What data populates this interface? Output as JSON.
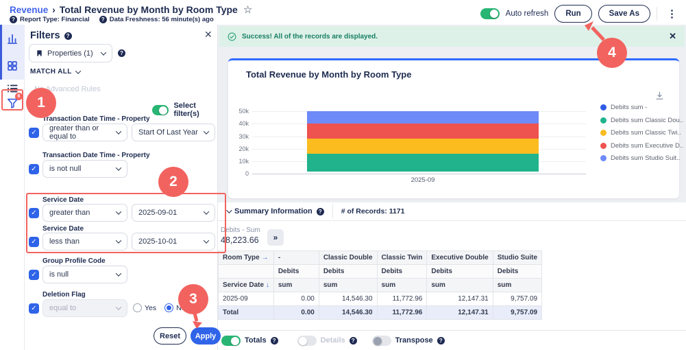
{
  "header": {
    "breadcrumb_parent": "Revenue",
    "title": "Total Revenue by Month by Room Type",
    "report_type": "Report Type: Financial",
    "data_freshness": "Data Freshness: 56 minute(s) ago",
    "auto_refresh_label": "Auto refresh",
    "run_label": "Run",
    "save_as_label": "Save As"
  },
  "sidebar": {
    "filter_badge": "6"
  },
  "filters": {
    "title": "Filters",
    "properties_label": "Properties (1)",
    "match_all_label": "MATCH ALL",
    "no_advanced_rules_label": "No Advanced Rules",
    "select_filters_label": "Select filter(s)",
    "rows": [
      {
        "field": "Transaction Date Time - Property",
        "operator": "greater than or equal to",
        "value": "Start Of Last Year"
      },
      {
        "field": "Transaction Date Time - Property",
        "operator": "is not null"
      },
      {
        "field": "Service Date",
        "operator": "greater than",
        "value": "2025-09-01"
      },
      {
        "field": "Service Date",
        "operator": "less than",
        "value": "2025-10-01"
      },
      {
        "field": "Group Profile Code",
        "operator": "is null"
      },
      {
        "field": "Deletion Flag",
        "operator": "equal to",
        "radio_yes": "Yes",
        "radio_no": "No",
        "radio_selected": "No"
      }
    ],
    "reset_label": "Reset",
    "apply_label": "Apply"
  },
  "banner": {
    "message": "Success! All of the records are displayed."
  },
  "chart_data": {
    "type": "bar",
    "stacked": true,
    "title": "Total Revenue by Month by Room Type",
    "categories": [
      "2025-09"
    ],
    "series": [
      {
        "name": "Debits sum -",
        "color": "#2e5ce6",
        "values": [
          0.0
        ]
      },
      {
        "name": "Debits sum Classic Dou..",
        "color": "#21b38b",
        "values": [
          14546.3
        ]
      },
      {
        "name": "Debits sum Classic Twi..",
        "color": "#fbbc20",
        "values": [
          11772.96
        ]
      },
      {
        "name": "Debits sum Executive D..",
        "color": "#ee534f",
        "values": [
          12147.31
        ]
      },
      {
        "name": "Debits sum Studio Suit..",
        "color": "#6d8af8",
        "values": [
          9757.09
        ]
      }
    ],
    "ylim": [
      0,
      50000
    ],
    "yticks": [
      "50k",
      "40k",
      "30k",
      "20k",
      "10k",
      "0"
    ],
    "xlabel": "",
    "ylabel": "",
    "legend_position": "right",
    "grid": true
  },
  "summary": {
    "section_label": "Summary Information",
    "records_label": "# of Records: 1171",
    "metric_label": "Debits - Sum",
    "metric_value": "48,223.66",
    "expand_icon": "»"
  },
  "table": {
    "corner_label": "Room Type",
    "row_header": "Service Date",
    "columns": [
      "-",
      "Classic Double",
      "Classic Twin",
      "Executive Double",
      "Studio Suite"
    ],
    "measure_label": "Debits",
    "agg_label": "sum",
    "rows": [
      {
        "label": "2025-09",
        "values": [
          "0.00",
          "14,546.30",
          "11,772.96",
          "12,147.31",
          "9,757.09"
        ]
      }
    ],
    "total_row": {
      "label": "Total",
      "values": [
        "0.00",
        "14,546.30",
        "11,772.96",
        "12,147.31",
        "9,757.09"
      ]
    }
  },
  "footer": {
    "totals_label": "Totals",
    "details_label": "Details",
    "transpose_label": "Transpose"
  },
  "annotations": {
    "step1": "1",
    "step2": "2",
    "step3": "3",
    "step4": "4"
  },
  "colors": {
    "accent_blue": "#2f63e8",
    "card_top": "#2f6bff",
    "toggle_green": "#29b573",
    "annotation_red": "#f2635f",
    "banner_green_bg": "#ddf1e8",
    "total_row_bg": "#e9edfa"
  }
}
